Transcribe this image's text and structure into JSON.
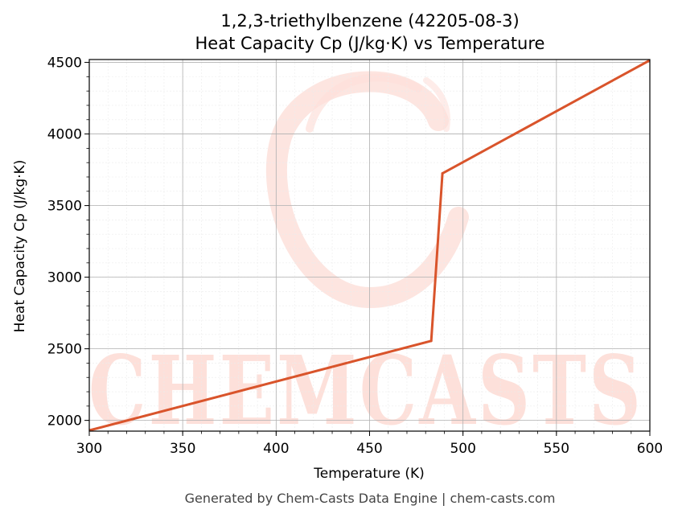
{
  "chart_data": {
    "type": "line",
    "title": "1,2,3-triethylbenzene (42205-08-3)",
    "subtitle": "Heat Capacity Cp (J/kg·K) vs Temperature",
    "xlabel": "Temperature (K)",
    "ylabel": "Heat Capacity Cp (J/kg·K)",
    "xlim": [
      300,
      600
    ],
    "ylim": [
      1925,
      4520
    ],
    "x_ticks": [
      300,
      350,
      400,
      450,
      500,
      550,
      600
    ],
    "y_ticks": [
      2000,
      2500,
      3000,
      3500,
      4000,
      4500
    ],
    "grid": true,
    "series": [
      {
        "color": "#d9542b",
        "x": [
          300,
          483,
          489,
          600
        ],
        "y": [
          1930,
          2555,
          3725,
          4515
        ]
      }
    ]
  },
  "watermark": {
    "text": "CHEMCASTS",
    "color": "#fde0da"
  },
  "footer": "Generated by Chem-Casts Data Engine | chem-casts.com"
}
